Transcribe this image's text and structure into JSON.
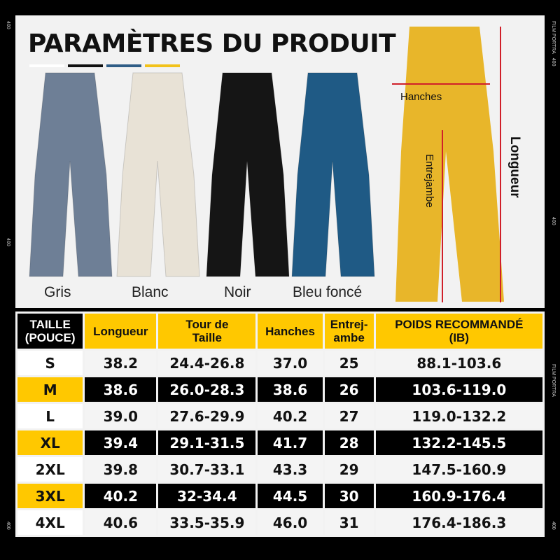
{
  "film": {
    "brand": "FILM PORTRA",
    "speed": "400"
  },
  "title": "PARAMÈTRES DU PRODUIT",
  "swatch_colors": [
    "#ffffff",
    "#111111",
    "#2f5d86",
    "#f2c21a"
  ],
  "products": [
    {
      "label": "Gris",
      "color": "#6e7f96"
    },
    {
      "label": "Blanc",
      "color": "#e8e2d6"
    },
    {
      "label": "Noir",
      "color": "#151515"
    },
    {
      "label": "Bleu foncé",
      "color": "#1f5a85"
    }
  ],
  "measure": {
    "color": "#e8b62a",
    "line_color": "#d0202a",
    "hips": "Hanches",
    "inseam": "Entrejambe",
    "length": "Longueur"
  },
  "table": {
    "headers": [
      [
        "TAILLE",
        "(POUCE)"
      ],
      [
        "Longueur"
      ],
      [
        "Tour de",
        "Taille"
      ],
      [
        "Hanches"
      ],
      [
        "Entrej-",
        "ambe"
      ],
      [
        "POIDS RECOMMANDÉ",
        "(IB)"
      ]
    ],
    "rows": [
      [
        "S",
        "38.2",
        "24.4-26.8",
        "37.0",
        "25",
        "88.1-103.6"
      ],
      [
        "M",
        "38.6",
        "26.0-28.3",
        "38.6",
        "26",
        "103.6-119.0"
      ],
      [
        "L",
        "39.0",
        "27.6-29.9",
        "40.2",
        "27",
        "119.0-132.2"
      ],
      [
        "XL",
        "39.4",
        "29.1-31.5",
        "41.7",
        "28",
        "132.2-145.5"
      ],
      [
        "2XL",
        "39.8",
        "30.7-33.1",
        "43.3",
        "29",
        "147.5-160.9"
      ],
      [
        "3XL",
        "40.2",
        "32-34.4",
        "44.5",
        "30",
        "160.9-176.4"
      ],
      [
        "4XL",
        "40.6",
        "33.5-35.9",
        "46.0",
        "31",
        "176.4-186.3"
      ]
    ]
  }
}
